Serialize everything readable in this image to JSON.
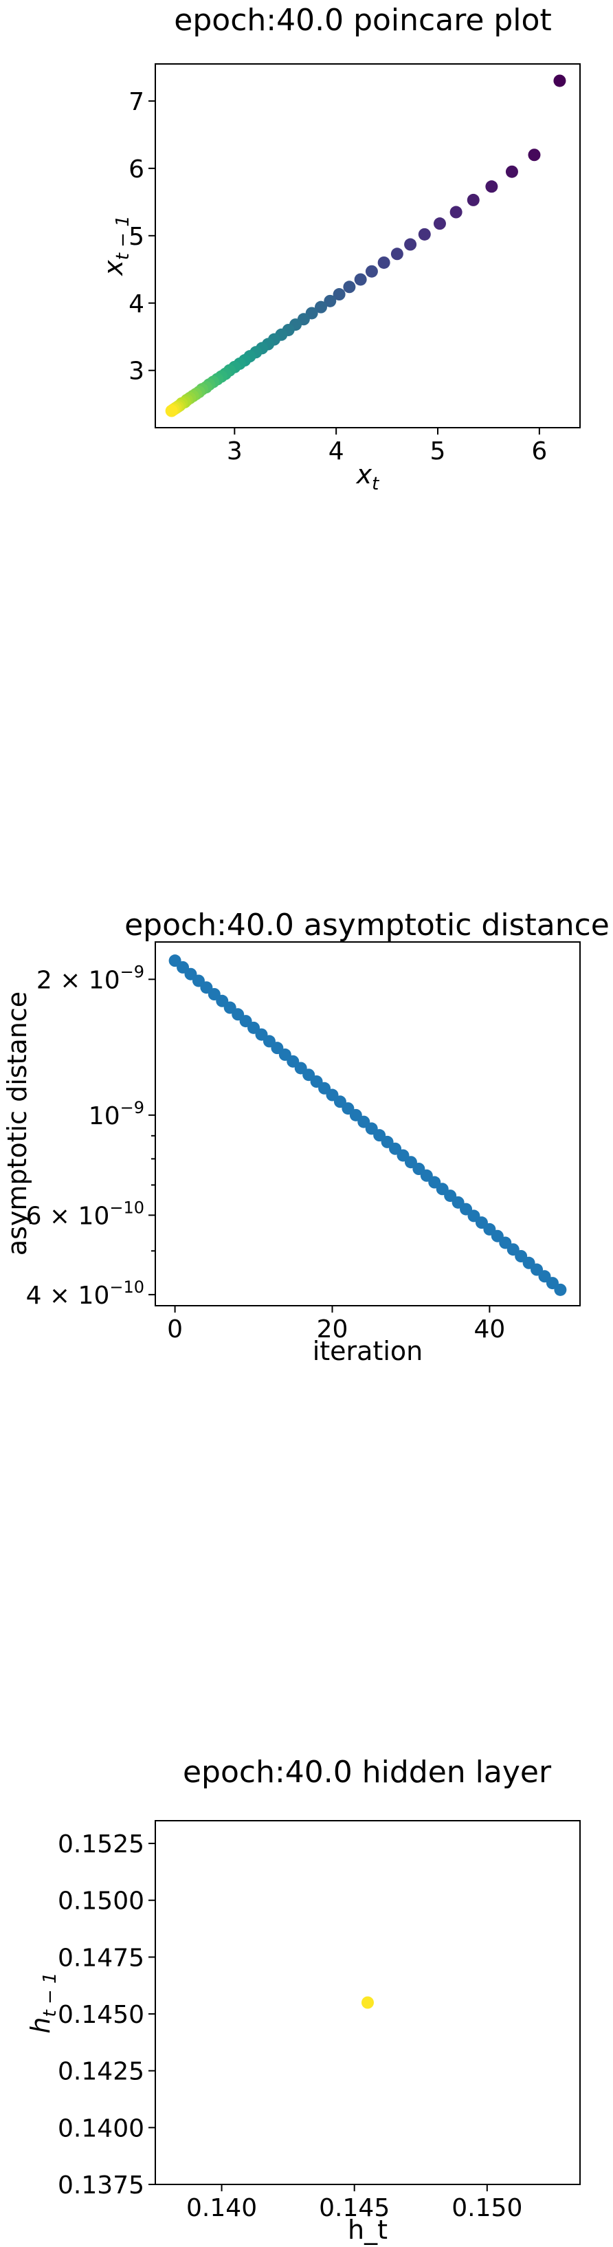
{
  "chart_data": [
    {
      "type": "scatter",
      "title": "epoch:40.0 poincare plot",
      "xlabel": "x_t",
      "ylabel": "x_{t-1}",
      "xlim": [
        2.22,
        6.4
      ],
      "ylim": [
        2.15,
        7.55
      ],
      "xticks": [
        3,
        4,
        5,
        6
      ],
      "yticks": [
        3,
        4,
        5,
        6,
        7
      ],
      "colormap": "viridis",
      "color_order": "first point purple (#440154), last point yellow (#fde725)",
      "x": [
        6.2,
        5.95,
        5.73,
        5.53,
        5.35,
        5.18,
        5.02,
        4.87,
        4.73,
        4.6,
        4.47,
        4.35,
        4.24,
        4.13,
        4.03,
        3.94,
        3.85,
        3.76,
        3.68,
        3.6,
        3.53,
        3.46,
        3.39,
        3.33,
        3.27,
        3.21,
        3.15,
        3.1,
        3.05,
        3.0,
        2.95,
        2.91,
        2.87,
        2.83,
        2.79,
        2.75,
        2.72,
        2.68,
        2.65,
        2.62,
        2.59,
        2.56,
        2.53,
        2.51,
        2.48,
        2.46,
        2.44,
        2.42,
        2.4,
        2.38
      ],
      "y": [
        7.3,
        6.2,
        5.95,
        5.73,
        5.53,
        5.35,
        5.18,
        5.02,
        4.87,
        4.73,
        4.6,
        4.47,
        4.35,
        4.24,
        4.13,
        4.03,
        3.94,
        3.85,
        3.76,
        3.68,
        3.6,
        3.53,
        3.46,
        3.39,
        3.33,
        3.27,
        3.21,
        3.15,
        3.1,
        3.05,
        3.0,
        2.95,
        2.91,
        2.87,
        2.83,
        2.79,
        2.75,
        2.72,
        2.68,
        2.65,
        2.62,
        2.59,
        2.56,
        2.53,
        2.51,
        2.48,
        2.46,
        2.44,
        2.42,
        2.4
      ]
    },
    {
      "type": "scatter",
      "title": "epoch:40.0 asymptotic distance",
      "xlabel": "iteration",
      "ylabel": "asymptotic distance",
      "yscale": "log",
      "xlim": [
        -2.5,
        51.5
      ],
      "ylim": [
        3.78e-10,
        2.42e-09
      ],
      "xticks": [
        0,
        20,
        40
      ],
      "yticks": [
        4e-10,
        6e-10,
        1e-09,
        2e-09
      ],
      "ytick_labels": [
        {
          "mantissa": "4",
          "base": "10",
          "exp": "−10"
        },
        {
          "mantissa": "6",
          "base": "10",
          "exp": "−10"
        },
        {
          "mantissa": "",
          "base": "10",
          "exp": "−9"
        },
        {
          "mantissa": "2",
          "base": "10",
          "exp": "−9"
        }
      ],
      "color": "#1f77b4",
      "x_start": 0,
      "x_end": 49,
      "y_start": 2.2e-09,
      "y_end": 4.1e-10
    },
    {
      "type": "scatter",
      "title": "epoch:40.0 hidden layer",
      "xlabel": "h_t",
      "ylabel": "h_{t-1}",
      "xlim": [
        0.1375,
        0.1535
      ],
      "ylim": [
        0.1375,
        0.1535
      ],
      "xticks": [
        0.14,
        0.145,
        0.15
      ],
      "yticks": [
        0.1375,
        0.14,
        0.1425,
        0.145,
        0.1475,
        0.15,
        0.1525
      ],
      "color": "#fde725",
      "x": [
        0.1455
      ],
      "y": [
        0.1455
      ]
    }
  ]
}
